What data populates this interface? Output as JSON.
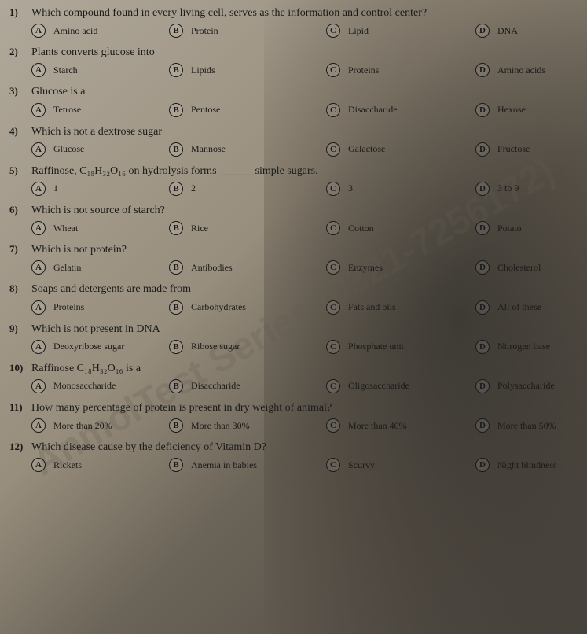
{
  "watermark": "AnmolTest Series (0321-7256172)",
  "questions": [
    {
      "num": "1)",
      "text": "Which compound found in every living cell, serves as the information and control center?",
      "a": "Amino acid",
      "b": "Protein",
      "c": "Lipid",
      "d": "DNA"
    },
    {
      "num": "2)",
      "text": "Plants converts glucose into",
      "a": "Starch",
      "b": "Lipids",
      "c": "Proteins",
      "d": "Amino acids"
    },
    {
      "num": "3)",
      "text": "Glucose is a",
      "a": "Tetrose",
      "b": "Pentose",
      "c": "Disaccharide",
      "d": "Hexose"
    },
    {
      "num": "4)",
      "text": "Which is not a dextrose sugar",
      "a": "Glucose",
      "b": "Mannose",
      "c": "Galactose",
      "d": "Fructose"
    },
    {
      "num": "5)",
      "text": "Raffinose, C₁₈H₃₂O₁₆ on hydrolysis forms ______ simple sugars.",
      "a": "1",
      "b": "2",
      "c": "3",
      "d": "3 to 9"
    },
    {
      "num": "6)",
      "text": "Which is not source of starch?",
      "a": "Wheat",
      "b": "Rice",
      "c": "Cotton",
      "d": "Potato"
    },
    {
      "num": "7)",
      "text": "Which is not protein?",
      "a": "Gelatin",
      "b": "Antibodies",
      "c": "Enzymes",
      "d": "Cholesterol"
    },
    {
      "num": "8)",
      "text": "Soaps and detergents are made from",
      "a": "Proteins",
      "b": "Carbohydrates",
      "c": "Fats and oils",
      "d": "All of these"
    },
    {
      "num": "9)",
      "text": "Which is not present in DNA",
      "a": "Deoxyribose sugar",
      "b": "Ribose sugar",
      "c": "Phosphate unit",
      "d": "Nitrogen base"
    },
    {
      "num": "10)",
      "text": "Raffinose C₁₈H₃₂O₁₆ is a",
      "a": "Monosaccharide",
      "b": "Disaccharide",
      "c": "Oligosaccharide",
      "d": "Polysaccharide"
    },
    {
      "num": "11)",
      "text": "How many percentage of protein is present in dry weight of animal?",
      "a": "More than 20%",
      "b": "More than 30%",
      "c": "More than 40%",
      "d": "More than 50%"
    },
    {
      "num": "12)",
      "text": "Which disease cause by the deficiency of Vitamin D?",
      "a": "Rickets",
      "b": "Anemia in babies",
      "c": "Scurvy",
      "d": "Night blindness"
    }
  ],
  "labels": {
    "a": "A",
    "b": "B",
    "c": "C",
    "d": "D"
  }
}
